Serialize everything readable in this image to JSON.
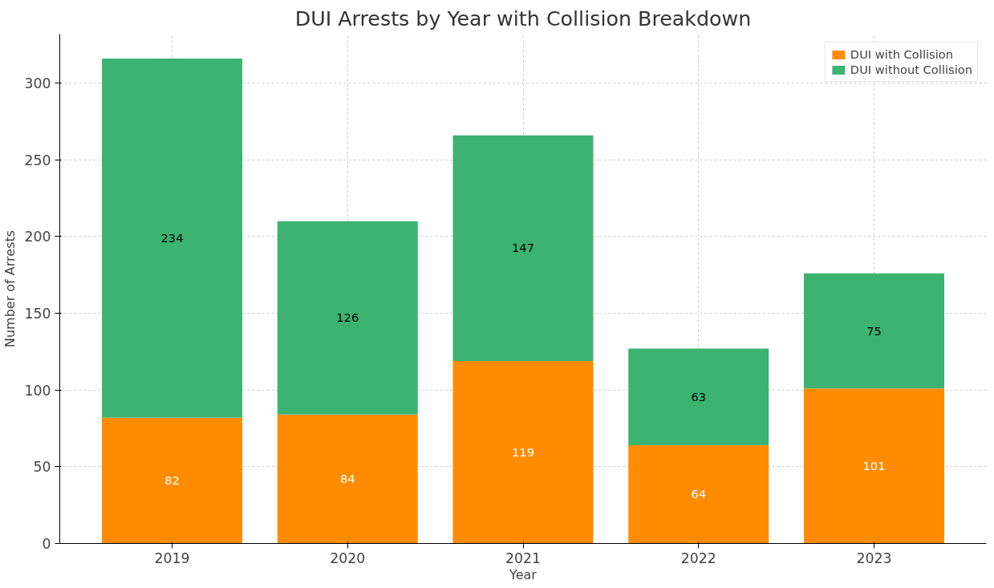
{
  "chart_data": {
    "type": "bar",
    "title": "DUI Arrests by Year with Collision Breakdown",
    "xlabel": "Year",
    "ylabel": "Number of Arrests",
    "categories": [
      "2019",
      "2020",
      "2021",
      "2022",
      "2023"
    ],
    "stacked": true,
    "series": [
      {
        "name": "DUI with Collision",
        "color": "#ff8c00",
        "values": [
          82,
          84,
          119,
          64,
          101
        ]
      },
      {
        "name": "DUI without Collision",
        "color": "#3cb371",
        "values": [
          234,
          126,
          147,
          63,
          75
        ]
      }
    ],
    "ylim": [
      0,
      332
    ],
    "yticks": [
      0,
      50,
      100,
      150,
      200,
      250,
      300
    ],
    "grid": true,
    "legend": "top right",
    "data_labels": true
  }
}
